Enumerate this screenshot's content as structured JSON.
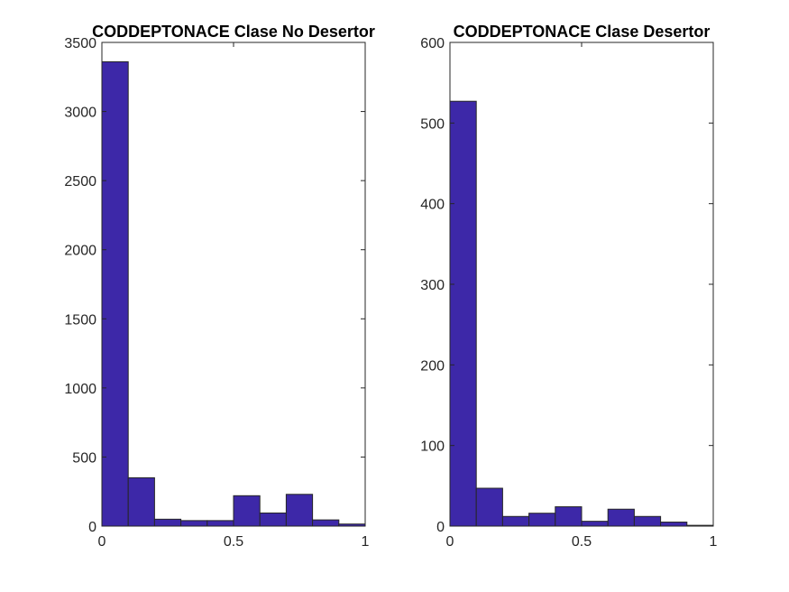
{
  "chart_data": [
    {
      "type": "bar",
      "title": "CODDEPTONACE Clase No Desertor",
      "xlabel": "",
      "ylabel": "",
      "xlim": [
        0,
        1
      ],
      "ylim": [
        0,
        3500
      ],
      "x_ticks": [
        0,
        0.5,
        1
      ],
      "x_tick_labels": [
        "0",
        "0.5",
        "1"
      ],
      "y_ticks": [
        0,
        500,
        1000,
        1500,
        2000,
        2500,
        3000,
        3500
      ],
      "y_tick_labels": [
        "0",
        "500",
        "1000",
        "1500",
        "2000",
        "2500",
        "3000",
        "3500"
      ],
      "bin_edges": [
        0,
        0.1,
        0.2,
        0.3,
        0.4,
        0.5,
        0.6,
        0.7,
        0.8,
        0.9,
        1.0
      ],
      "values": [
        3360,
        350,
        50,
        40,
        40,
        220,
        95,
        230,
        45,
        15
      ],
      "color": "#3d28a8",
      "grid": false
    },
    {
      "type": "bar",
      "title": "CODDEPTONACE Clase Desertor",
      "xlabel": "",
      "ylabel": "",
      "xlim": [
        0,
        1
      ],
      "ylim": [
        0,
        600
      ],
      "x_ticks": [
        0,
        0.5,
        1
      ],
      "x_tick_labels": [
        "0",
        "0.5",
        "1"
      ],
      "y_ticks": [
        0,
        100,
        200,
        300,
        400,
        500,
        600
      ],
      "y_tick_labels": [
        "0",
        "100",
        "200",
        "300",
        "400",
        "500",
        "600"
      ],
      "bin_edges": [
        0,
        0.1,
        0.2,
        0.3,
        0.4,
        0.5,
        0.6,
        0.7,
        0.8,
        0.9,
        1.0
      ],
      "values": [
        527,
        47,
        12,
        16,
        24,
        6,
        21,
        12,
        5,
        1
      ],
      "color": "#3d28a8",
      "grid": false
    }
  ]
}
